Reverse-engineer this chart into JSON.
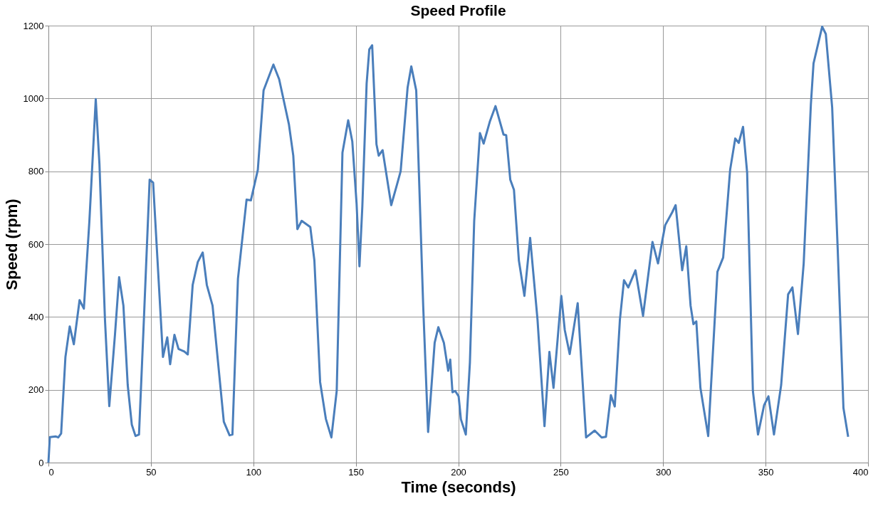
{
  "chart_data": {
    "type": "line",
    "title": "Speed Profile",
    "xlabel": "Time (seconds)",
    "ylabel": "Speed (rpm)",
    "xlim": [
      0,
      400
    ],
    "xticks": [
      0,
      50,
      100,
      150,
      200,
      250,
      300,
      350,
      400
    ],
    "ylim": [
      0,
      1200
    ],
    "yticks": [
      0,
      200,
      400,
      600,
      800,
      1000,
      1200
    ],
    "grid": true,
    "marker": "none",
    "line_style": "solid",
    "series": [
      {
        "color": "#4a7ebb",
        "x": [
          0.0,
          0.7,
          3.5,
          4.8,
          6.2,
          8.3,
          10.4,
          12.4,
          15.2,
          17.3,
          20.0,
          23.1,
          24.9,
          27.6,
          29.7,
          32.5,
          34.5,
          36.6,
          38.7,
          40.7,
          42.5,
          44.2,
          46.3,
          49.4,
          51.1,
          55.9,
          58.0,
          59.4,
          61.5,
          63.5,
          66.3,
          68.0,
          70.4,
          72.9,
          75.3,
          77.3,
          80.1,
          85.6,
          88.4,
          89.8,
          92.5,
          96.7,
          98.8,
          102.2,
          105.0,
          109.8,
          112.6,
          117.4,
          119.5,
          121.5,
          123.6,
          127.8,
          129.8,
          132.6,
          135.4,
          138.1,
          140.7,
          143.5,
          146.3,
          148.3,
          150.4,
          151.8,
          153.2,
          155.3,
          156.6,
          158.0,
          160.1,
          161.2,
          163.1,
          167.3,
          169.8,
          171.9,
          175.3,
          177.1,
          179.5,
          182.9,
          185.3,
          188.5,
          190.3,
          193.0,
          195.1,
          196.1,
          197.2,
          198.5,
          200.2,
          201.3,
          203.7,
          205.7,
          207.8,
          210.6,
          212.4,
          215.4,
          218.2,
          222.1,
          223.4,
          225.4,
          227.2,
          229.6,
          232.3,
          235.1,
          238.7,
          242.1,
          244.5,
          246.5,
          250.3,
          252.0,
          254.4,
          258.3,
          262.4,
          266.6,
          270.0,
          272.1,
          274.5,
          276.4,
          278.9,
          280.9,
          283.0,
          286.5,
          290.2,
          294.8,
          297.5,
          301.0,
          304.4,
          306.1,
          309.3,
          311.3,
          313.4,
          314.8,
          316.2,
          318.2,
          322.0,
          326.5,
          329.3,
          332.7,
          335.2,
          336.9,
          339.0,
          341.0,
          343.8,
          346.3,
          349.3,
          351.4,
          354.1,
          357.6,
          361.0,
          363.1,
          365.8,
          368.6,
          372.1,
          373.4,
          377.6,
          379.4,
          382.5,
          385.2,
          388.0,
          390.3
        ],
        "values": [
          0,
          70,
          72,
          69,
          80,
          290,
          374,
          325,
          446,
          423,
          664,
          998,
          820,
          392,
          155,
          353,
          509,
          431,
          213,
          104,
          73,
          77,
          353,
          777,
          769,
          290,
          344,
          270,
          351,
          312,
          305,
          297,
          488,
          551,
          577,
          488,
          431,
          112,
          75,
          77,
          505,
          722,
          720,
          804,
          1022,
          1093,
          1053,
          928,
          843,
          641,
          664,
          647,
          555,
          221,
          120,
          69,
          197,
          851,
          940,
          882,
          711,
          539,
          703,
          1041,
          1135,
          1146,
          874,
          843,
          858,
          707,
          757,
          800,
          1030,
          1088,
          1022,
          431,
          84,
          329,
          372,
          329,
          252,
          283,
          193,
          197,
          182,
          119,
          77,
          275,
          664,
          905,
          876,
          936,
          979,
          901,
          899,
          777,
          749,
          555,
          458,
          617,
          392,
          100,
          304,
          205,
          458,
          364,
          298,
          438,
          69,
          88,
          69,
          71,
          185,
          154,
          392,
          501,
          481,
          528,
          403,
          606,
          547,
          652,
          687,
          707,
          528,
          594,
          431,
          380,
          388,
          205,
          73,
          524,
          563,
          804,
          890,
          878,
          922,
          796,
          197,
          77,
          158,
          182,
          77,
          213,
          462,
          481,
          353,
          547,
          983,
          1096,
          1197,
          1177,
          975,
          586,
          150,
          71
        ]
      }
    ]
  }
}
